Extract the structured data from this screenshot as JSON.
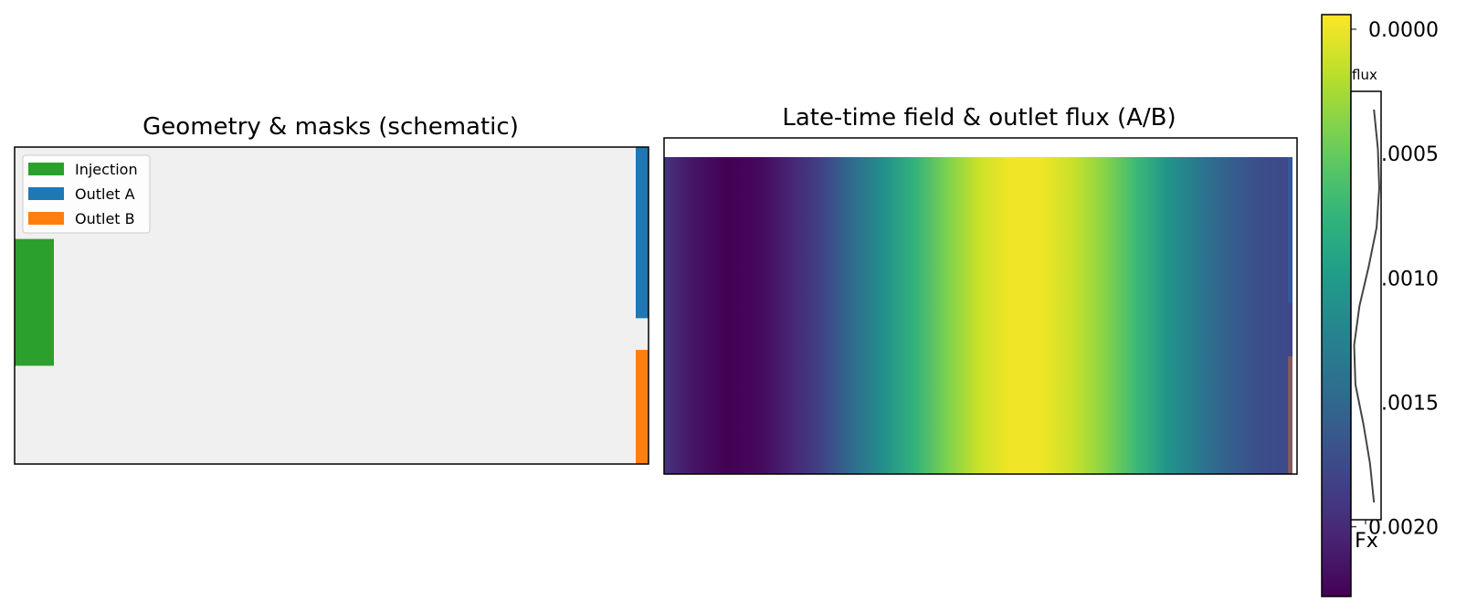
{
  "chart_data": [
    {
      "type": "schematic",
      "title": "Geometry & masks (schematic)",
      "background_color": "#f0f0f0",
      "legend": {
        "placement": "upper-left",
        "entries": [
          {
            "label": "Injection",
            "color": "#2ca02c"
          },
          {
            "label": "Outlet A",
            "color": "#1f77b4"
          },
          {
            "label": "Outlet B",
            "color": "#ff7f0e"
          }
        ]
      },
      "regions": [
        {
          "name": "Injection",
          "edge": "left",
          "span": [
            0.29,
            0.69
          ]
        },
        {
          "name": "Outlet A",
          "edge": "right",
          "span": [
            0.0,
            0.54
          ]
        },
        {
          "name": "Outlet B",
          "edge": "right",
          "span": [
            0.64,
            1.0
          ]
        }
      ]
    },
    {
      "type": "heatmap",
      "title": "Late-time field & outlet flux (A/B)",
      "colormap": "viridis",
      "field_profile": {
        "description_values": "normalized field value (0 = dark purple, 1 = yellow) across x",
        "x": [
          0.0,
          0.05,
          0.1,
          0.15,
          0.2,
          0.25,
          0.3,
          0.35,
          0.4,
          0.45,
          0.5,
          0.55,
          0.6,
          0.65,
          0.7,
          0.75,
          0.8,
          0.85,
          0.9,
          0.95,
          1.0
        ],
        "value": [
          0.15,
          0.05,
          0.0,
          0.02,
          0.1,
          0.2,
          0.35,
          0.5,
          0.65,
          0.8,
          0.92,
          0.98,
          0.98,
          0.92,
          0.82,
          0.68,
          0.52,
          0.4,
          0.3,
          0.24,
          0.22
        ]
      },
      "colorbar": {
        "ticks": [
          "0.0000",
          "0.0005",
          "0.0010",
          "0.0015",
          "0.0020"
        ],
        "tick_values": [
          0.0,
          0.0005,
          0.001,
          0.0015,
          0.002
        ],
        "range": [
          0.0,
          0.00228
        ],
        "inverted": true
      },
      "inset": {
        "title": "flux",
        "xlabel": "Fx",
        "type": "line",
        "y": [
          0.0,
          0.1,
          0.2,
          0.3,
          0.4,
          0.5,
          0.6,
          0.7,
          0.8,
          0.9,
          1.0
        ],
        "x": [
          0.8,
          0.95,
          1.0,
          0.9,
          0.6,
          0.25,
          0.05,
          0.1,
          0.4,
          0.65,
          0.8
        ]
      }
    }
  ]
}
